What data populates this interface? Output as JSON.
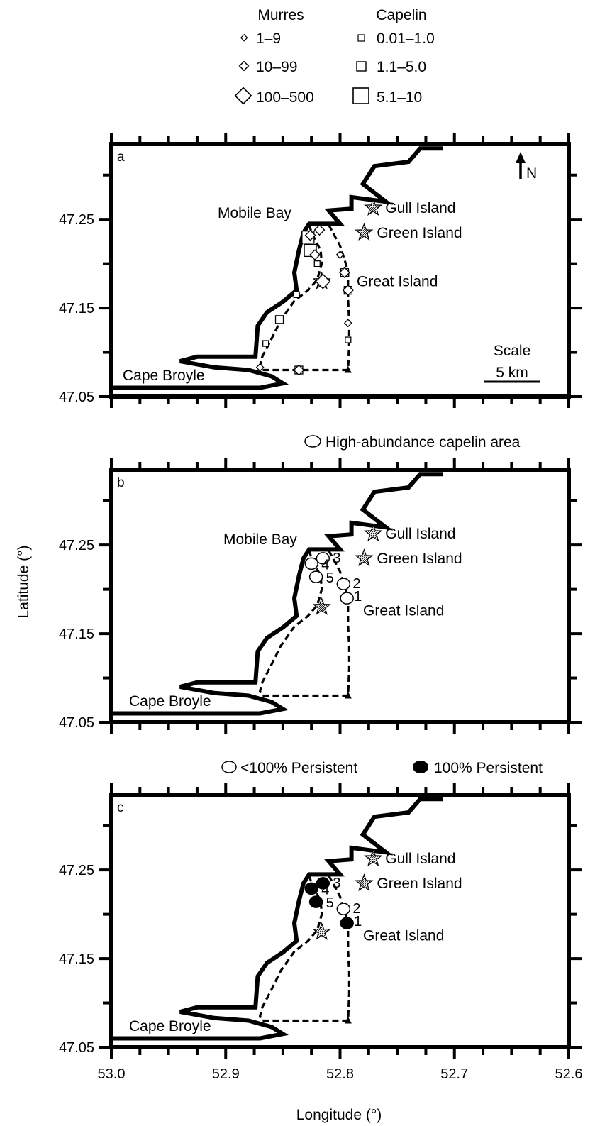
{
  "legend_top": {
    "murres_title": "Murres",
    "capelin_title": "Capelin",
    "murres_bins": [
      "1–9",
      "10–99",
      "100–500"
    ],
    "capelin_bins": [
      "0.01–1.0",
      "1.1–5.0",
      "5.1–10"
    ]
  },
  "legend_b": "High-abundance capelin area",
  "legend_c": {
    "partial": "<100% Persistent",
    "full": "100% Persistent"
  },
  "axes": {
    "ylabel": "Latitude (°)",
    "xlabel": "Longitude (°)",
    "x_ticks": [
      "53.0",
      "52.9",
      "52.8",
      "52.7",
      "52.6"
    ],
    "y_ticks": [
      "47.25",
      "47.15",
      "47.05"
    ]
  },
  "panels": [
    {
      "letter": "a",
      "place_labels": {
        "mobile_bay": "Mobile Bay",
        "gull_island": "Gull Island",
        "green_island": "Green Island",
        "great_island": "Great Island",
        "cape_broyle": "Cape Broyle"
      },
      "north": "N",
      "scale_title": "Scale",
      "scale_value": "5 km"
    },
    {
      "letter": "b",
      "place_labels": {
        "mobile_bay": "Mobile Bay",
        "gull_island": "Gull Island",
        "green_island": "Green Island",
        "great_island": "Great Island",
        "cape_broyle": "Cape Broyle"
      },
      "area_numbers": [
        "1",
        "2",
        "3",
        "4",
        "5"
      ]
    },
    {
      "letter": "c",
      "place_labels": {
        "gull_island": "Gull Island",
        "green_island": "Green Island",
        "great_island": "Great Island",
        "cape_broyle": "Cape Broyle"
      },
      "area_numbers": [
        "1",
        "2",
        "3",
        "4",
        "5"
      ],
      "persistence": [
        "full",
        "partial",
        "full",
        "full",
        "full"
      ]
    }
  ],
  "chart_data": {
    "type": "map",
    "xlim": [
      53.0,
      52.6
    ],
    "ylim": [
      47.05,
      47.335
    ],
    "islands": [
      {
        "name": "Gull Island",
        "lon": 52.771,
        "lat": 47.263
      },
      {
        "name": "Green Island",
        "lon": 52.779,
        "lat": 47.235
      },
      {
        "name": "Great Island",
        "lon": 52.816,
        "lat": 47.18
      }
    ],
    "coastline": [
      [
        52.71,
        47.33
      ],
      [
        52.73,
        47.33
      ],
      [
        52.74,
        47.315
      ],
      [
        52.77,
        47.31
      ],
      [
        52.78,
        47.29
      ],
      [
        52.76,
        47.27
      ],
      [
        52.79,
        47.275
      ],
      [
        52.79,
        47.262
      ],
      [
        52.81,
        47.26
      ],
      [
        52.8,
        47.245
      ],
      [
        52.827,
        47.245
      ],
      [
        52.832,
        47.235
      ],
      [
        52.836,
        47.215
      ],
      [
        52.84,
        47.19
      ],
      [
        52.838,
        47.17
      ],
      [
        52.85,
        47.157
      ],
      [
        52.864,
        47.145
      ],
      [
        52.872,
        47.13
      ],
      [
        52.874,
        47.095
      ],
      [
        52.925,
        47.095
      ],
      [
        52.94,
        47.09
      ],
      [
        52.91,
        47.083
      ],
      [
        52.88,
        47.08
      ],
      [
        52.86,
        47.073
      ],
      [
        52.85,
        47.065
      ],
      [
        52.87,
        47.06
      ],
      [
        53.0,
        47.06
      ]
    ],
    "survey_route": [
      [
        52.81,
        47.244
      ],
      [
        52.8,
        47.22
      ],
      [
        52.795,
        47.2
      ],
      [
        52.793,
        47.19
      ],
      [
        52.793,
        47.16
      ],
      [
        52.792,
        47.135
      ],
      [
        52.792,
        47.11
      ],
      [
        52.793,
        47.08
      ],
      [
        52.868,
        47.08
      ],
      [
        52.87,
        47.085
      ],
      [
        52.868,
        47.095
      ],
      [
        52.86,
        47.115
      ],
      [
        52.852,
        47.136
      ],
      [
        52.84,
        47.158
      ],
      [
        52.828,
        47.17
      ],
      [
        52.82,
        47.182
      ],
      [
        52.816,
        47.2
      ],
      [
        52.817,
        47.215
      ],
      [
        52.825,
        47.235
      ],
      [
        52.827,
        47.244
      ],
      [
        52.81,
        47.244
      ]
    ],
    "murres": [
      {
        "lon": 52.826,
        "lat": 47.232,
        "bin": 1
      },
      {
        "lon": 52.818,
        "lat": 47.238,
        "bin": 1
      },
      {
        "lon": 52.822,
        "lat": 47.21,
        "bin": 1
      },
      {
        "lon": 52.8,
        "lat": 47.21,
        "bin": 0
      },
      {
        "lon": 52.796,
        "lat": 47.19,
        "bin": 1
      },
      {
        "lon": 52.793,
        "lat": 47.17,
        "bin": 1
      },
      {
        "lon": 52.793,
        "lat": 47.133,
        "bin": 0
      },
      {
        "lon": 52.87,
        "lat": 47.083,
        "bin": 0
      },
      {
        "lon": 52.836,
        "lat": 47.08,
        "bin": 1
      },
      {
        "lon": 52.815,
        "lat": 47.18,
        "bin": 2
      }
    ],
    "capelin": [
      {
        "lon": 52.828,
        "lat": 47.23,
        "bin": 2
      },
      {
        "lon": 52.826,
        "lat": 47.215,
        "bin": 2
      },
      {
        "lon": 52.82,
        "lat": 47.2,
        "bin": 0
      },
      {
        "lon": 52.838,
        "lat": 47.165,
        "bin": 0
      },
      {
        "lon": 52.853,
        "lat": 47.137,
        "bin": 1
      },
      {
        "lon": 52.865,
        "lat": 47.11,
        "bin": 0
      },
      {
        "lon": 52.836,
        "lat": 47.08,
        "bin": 1
      },
      {
        "lon": 52.796,
        "lat": 47.19,
        "bin": 1
      },
      {
        "lon": 52.793,
        "lat": 47.17,
        "bin": 1
      },
      {
        "lon": 52.793,
        "lat": 47.114,
        "bin": 0
      }
    ],
    "capelin_areas": [
      {
        "id": "1",
        "lon": 52.794,
        "lat": 47.19
      },
      {
        "id": "2",
        "lon": 52.797,
        "lat": 47.206
      },
      {
        "id": "3",
        "lon": 52.815,
        "lat": 47.235
      },
      {
        "id": "4",
        "lon": 52.825,
        "lat": 47.229
      },
      {
        "id": "5",
        "lon": 52.821,
        "lat": 47.214
      }
    ]
  }
}
